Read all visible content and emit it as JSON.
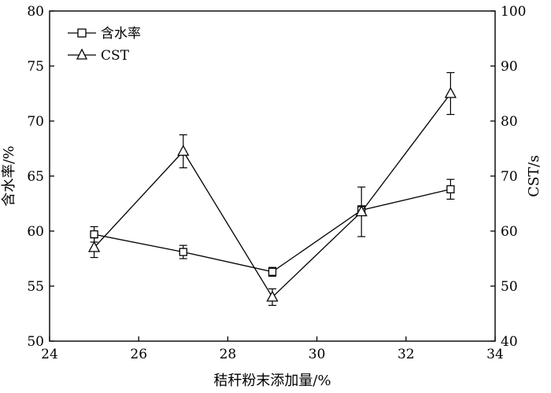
{
  "chart_data": {
    "type": "line",
    "xlabel": "秸秆粉末添加量/%",
    "ylabel_left": "含水率/%",
    "ylabel_right": "CST/s",
    "xlim": [
      24,
      34
    ],
    "ylim_left": [
      50,
      80
    ],
    "ylim_right": [
      40,
      100
    ],
    "x_ticks": [
      "24",
      "26",
      "28",
      "30",
      "32",
      "34"
    ],
    "y_left_ticks": [
      "50",
      "55",
      "60",
      "65",
      "70",
      "75",
      "80"
    ],
    "y_right_ticks": [
      "40",
      "50",
      "60",
      "70",
      "80",
      "90",
      "100"
    ],
    "grid": false,
    "legend_position": "top-left",
    "series": [
      {
        "name": "含水率",
        "axis": "left",
        "marker": "square",
        "x": [
          25,
          27,
          29,
          31,
          33
        ],
        "y": [
          59.7,
          58.1,
          56.3,
          61.9,
          63.8
        ],
        "err": [
          0.7,
          0.6,
          0.4,
          0.4,
          0.9
        ]
      },
      {
        "name": "CST",
        "axis": "right",
        "marker": "triangle",
        "x": [
          25,
          27,
          29,
          31,
          33
        ],
        "y": [
          57.0,
          74.5,
          48.0,
          63.5,
          85.0
        ],
        "err": [
          1.8,
          3.0,
          1.5,
          4.5,
          3.8
        ]
      }
    ]
  }
}
